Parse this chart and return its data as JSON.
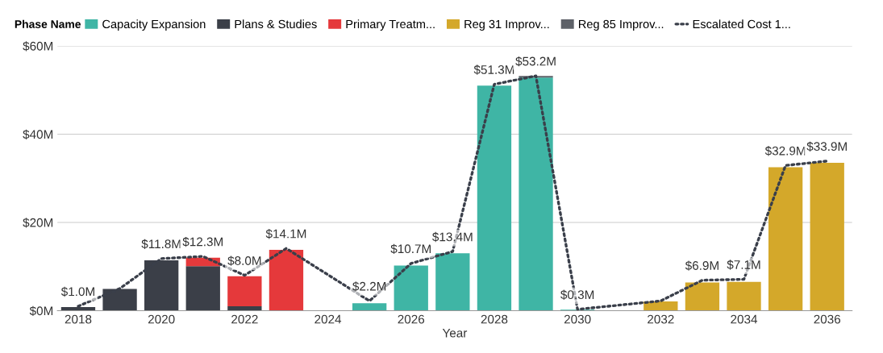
{
  "chart_data": {
    "type": "bar",
    "stacked": true,
    "xlabel": "Year",
    "legend_title": "Phase Name",
    "legend": "top left",
    "grid": "y",
    "x": [
      2018,
      2019,
      2020,
      2021,
      2022,
      2023,
      2025,
      2026,
      2027,
      2028,
      2029,
      2030,
      2032,
      2033,
      2034,
      2035,
      2036
    ],
    "xlim": [
      2017.5,
      2036.6
    ],
    "xticks": [
      2018,
      2020,
      2022,
      2024,
      2026,
      2028,
      2030,
      2032,
      2034,
      2036
    ],
    "ylim": [
      0,
      60
    ],
    "yticks": [
      {
        "value": 0,
        "label": "$0M"
      },
      {
        "value": 20,
        "label": "$20M"
      },
      {
        "value": 40,
        "label": "$40M"
      },
      {
        "value": 60,
        "label": "$60M"
      }
    ],
    "series": [
      {
        "name": "Capacity Expansion",
        "color": "#3fb5a5",
        "values": [
          null,
          null,
          null,
          null,
          null,
          null,
          1.7,
          10.2,
          13.0,
          51.0,
          52.8,
          0.2,
          null,
          null,
          null,
          null,
          null
        ]
      },
      {
        "name": "Plans & Studies",
        "color": "#3b3f48",
        "values": [
          0.8,
          4.9,
          11.4,
          10.1,
          1.0,
          null,
          null,
          null,
          null,
          null,
          null,
          null,
          null,
          null,
          null,
          null,
          null
        ]
      },
      {
        "name": "Primary Treatm...",
        "color": "#e5393b",
        "values": [
          null,
          null,
          null,
          1.9,
          6.8,
          13.8,
          null,
          null,
          null,
          null,
          null,
          null,
          null,
          null,
          null,
          null,
          null
        ]
      },
      {
        "name": "Reg 31 Improv...",
        "color": "#d4a82a",
        "values": [
          null,
          null,
          null,
          null,
          null,
          null,
          null,
          null,
          null,
          null,
          null,
          null,
          2.1,
          6.4,
          6.5,
          32.5,
          33.5
        ]
      },
      {
        "name": "Reg 85 Improv...",
        "color": "#5d6168",
        "values": [
          null,
          null,
          null,
          null,
          null,
          null,
          null,
          null,
          null,
          null,
          0.4,
          null,
          null,
          null,
          null,
          null,
          null
        ]
      },
      {
        "name": "Escalated Cost 1...",
        "type": "line",
        "line_style": "dotted",
        "marker": "none",
        "color": "#3a3f4a",
        "x": [
          2018,
          2019,
          2020,
          2021,
          2022,
          2023,
          2025,
          2026,
          2027,
          2028,
          2029,
          2030,
          2032,
          2033,
          2034,
          2035,
          2036
        ],
        "values": [
          1.0,
          5.0,
          11.8,
          12.3,
          8.0,
          14.1,
          2.2,
          10.7,
          13.4,
          51.3,
          53.2,
          0.3,
          2.2,
          6.9,
          7.1,
          32.9,
          33.9
        ],
        "value_labels": [
          "$1.0M",
          null,
          "$11.8M",
          "$12.3M",
          "$8.0M",
          "$14.1M",
          "$2.2M",
          "$10.7M",
          "$13.4M",
          "$51.3M",
          "$53.2M",
          "$0.3M",
          null,
          "$6.9M",
          "$7.1M",
          "$32.9M",
          "$33.9M"
        ]
      }
    ]
  }
}
